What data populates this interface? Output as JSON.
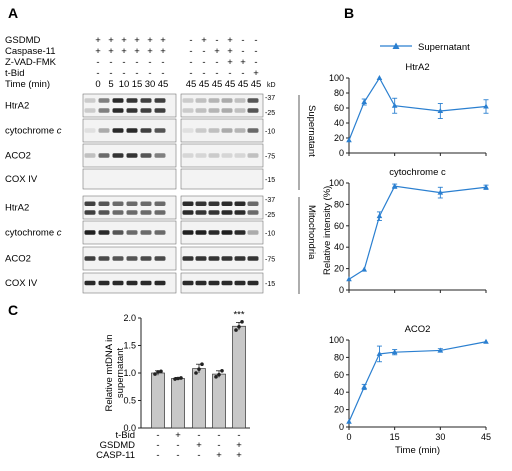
{
  "panel_a": {
    "letter": "A",
    "conditions": [
      {
        "label": "GSDMD",
        "left": [
          "+",
          "+",
          "+",
          "+",
          "+",
          "+"
        ],
        "right": [
          "-",
          "+",
          "-",
          "+",
          "-",
          "-"
        ]
      },
      {
        "label": "Caspase-11",
        "left": [
          "+",
          "+",
          "+",
          "+",
          "+",
          "+"
        ],
        "right": [
          "-",
          "-",
          "+",
          "+",
          "-",
          "-"
        ]
      },
      {
        "label": "Z-VAD-FMK",
        "left": [
          "-",
          "-",
          "-",
          "-",
          "-",
          "-"
        ],
        "right": [
          "-",
          "-",
          "-",
          "+",
          "+",
          "-"
        ]
      },
      {
        "label": "t-Bid",
        "left": [
          "-",
          "-",
          "-",
          "-",
          "-",
          "-"
        ],
        "right": [
          "-",
          "-",
          "-",
          "-",
          "-",
          "+"
        ]
      }
    ],
    "time_label": "Time (min)",
    "times_left": [
      "0",
      "5",
      "10",
      "15",
      "30",
      "45"
    ],
    "times_right": [
      "45",
      "45",
      "45",
      "45",
      "45",
      "45"
    ],
    "kd_label": "kD",
    "supernatant_label": "Supernatant",
    "mitochondria_label": "Mitochondria",
    "rows": [
      {
        "label": "HtrA2",
        "italic_part": "",
        "markers": [
          "37",
          "25"
        ]
      },
      {
        "label": "cytochrome ",
        "italic_part": "c",
        "markers": [
          "10"
        ]
      },
      {
        "label": "ACO2",
        "italic_part": "",
        "markers": [
          "75"
        ]
      },
      {
        "label": "COX IV",
        "italic_part": "",
        "markers": [
          "15"
        ]
      },
      {
        "label": "HtrA2",
        "italic_part": "",
        "markers": [
          "37",
          "25"
        ]
      },
      {
        "label": "cytochrome ",
        "italic_part": "c",
        "markers": [
          "10"
        ]
      },
      {
        "label": "ACO2",
        "italic_part": "",
        "markers": [
          "75"
        ]
      },
      {
        "label": "COX IV",
        "italic_part": "",
        "markers": [
          "15"
        ]
      }
    ]
  },
  "panel_b": {
    "letter": "B",
    "legend_label": "Supernatant",
    "ylabel": "Relative intensity (%)",
    "xlabel": "Time (min)"
  },
  "panel_c": {
    "letter": "C",
    "significance": "***",
    "row_labels": [
      "t-Bid",
      "GSDMD",
      "CASP-11"
    ],
    "row_signs": [
      [
        "-",
        "+",
        "-",
        "-",
        "-"
      ],
      [
        "-",
        "-",
        "+",
        "-",
        "+"
      ],
      [
        "-",
        "-",
        "-",
        "+",
        "+"
      ]
    ]
  },
  "chart_data": [
    {
      "type": "line",
      "title": "HtrA2",
      "x": [
        0,
        5,
        10,
        15,
        30,
        45
      ],
      "series": [
        {
          "name": "Supernatant",
          "values": [
            17,
            68,
            100,
            63,
            56,
            62
          ],
          "errors": [
            0,
            4,
            0,
            10,
            10,
            9
          ]
        }
      ],
      "xlim": [
        0,
        45
      ],
      "ylim": [
        0,
        100
      ],
      "yticks": [
        0,
        20,
        40,
        60,
        80,
        100
      ],
      "color": "#2a7fd0"
    },
    {
      "type": "line",
      "title": "cytochrome c",
      "x": [
        0,
        5,
        10,
        15,
        30,
        45
      ],
      "series": [
        {
          "name": "Supernatant",
          "values": [
            10,
            19,
            69,
            97,
            91,
            96
          ],
          "errors": [
            0,
            0,
            4,
            2,
            5,
            2
          ]
        }
      ],
      "xlim": [
        0,
        45
      ],
      "ylim": [
        0,
        100
      ],
      "yticks": [
        0,
        20,
        40,
        60,
        80,
        100
      ],
      "ylabel": "Relative intensity (%)",
      "color": "#2a7fd0"
    },
    {
      "type": "line",
      "title": "ACO2",
      "x": [
        0,
        5,
        10,
        15,
        30,
        45
      ],
      "series": [
        {
          "name": "Supernatant",
          "values": [
            6,
            46,
            84,
            86,
            88,
            98
          ],
          "errors": [
            0,
            3,
            9,
            3,
            2,
            0
          ]
        }
      ],
      "xlim": [
        0,
        45
      ],
      "ylim": [
        0,
        100
      ],
      "xticks": [
        0,
        15,
        30,
        45
      ],
      "yticks": [
        0,
        20,
        40,
        60,
        80,
        100
      ],
      "xlabel": "Time (min)",
      "color": "#2a7fd0"
    },
    {
      "type": "bar",
      "ylabel": "Relative mtDNA in supernatant",
      "values": [
        1.0,
        0.9,
        1.08,
        0.98,
        1.85
      ],
      "errors": [
        0.04,
        0.02,
        0.08,
        0.06,
        0.07
      ],
      "points": [
        [
          0.98,
          1.02,
          1.03
        ],
        [
          0.89,
          0.9,
          0.91
        ],
        [
          1.0,
          1.07,
          1.16
        ],
        [
          0.93,
          0.97,
          1.04
        ],
        [
          1.78,
          1.84,
          1.93
        ]
      ],
      "ylim": [
        0,
        2.0
      ],
      "yticks": [
        0,
        0.5,
        1.0,
        1.5,
        2.0
      ],
      "color": "#c8c8c8"
    }
  ]
}
